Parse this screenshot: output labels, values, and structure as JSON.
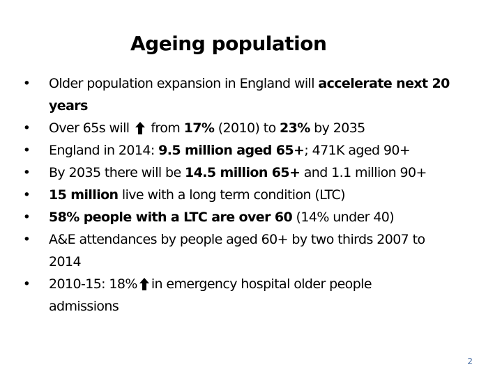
{
  "slide": {
    "title": "Ageing population",
    "page_number": "2"
  },
  "bullets": {
    "b1": {
      "part1": "Older population expansion in England will ",
      "part2_bold": "accelerate next 20",
      "part3": "years"
    },
    "b2": {
      "part1": "Over 65s will ",
      "arrow_icon": "up-arrow-icon",
      "part2": " from ",
      "part3_bold": "17%",
      "part4": " (2010) to ",
      "part5_bold": "23%",
      "part6": " by 2035"
    },
    "b3": {
      "part1": "England in 2014: ",
      "part2_bold": "9.5 million aged 65+",
      "part3": "; 471K aged 90+"
    },
    "b4": {
      "part1": "By 2035 there will be ",
      "part2_bold": "14.5 million 65+",
      "part3": " and 1.1 million 90+"
    },
    "b5": {
      "part1_bold": "15 million",
      "part2": " live with a long term condition (LTC)"
    },
    "b6": {
      "part1_bold": "58% people with a LTC are over 60",
      "part2": " (14% under 40)"
    },
    "b7": {
      "part1": "A&E attendances by people aged 60+ by two thirds 2007 to",
      "part2": "2014"
    },
    "b8": {
      "part1": "2010-15: 18%",
      "arrow_icon": "up-arrow-icon",
      "part2": "in emergency hospital older people",
      "part3": "admissions"
    }
  },
  "colors": {
    "text": "#000000",
    "page_number": "#4a6fa5",
    "background": "#ffffff"
  }
}
